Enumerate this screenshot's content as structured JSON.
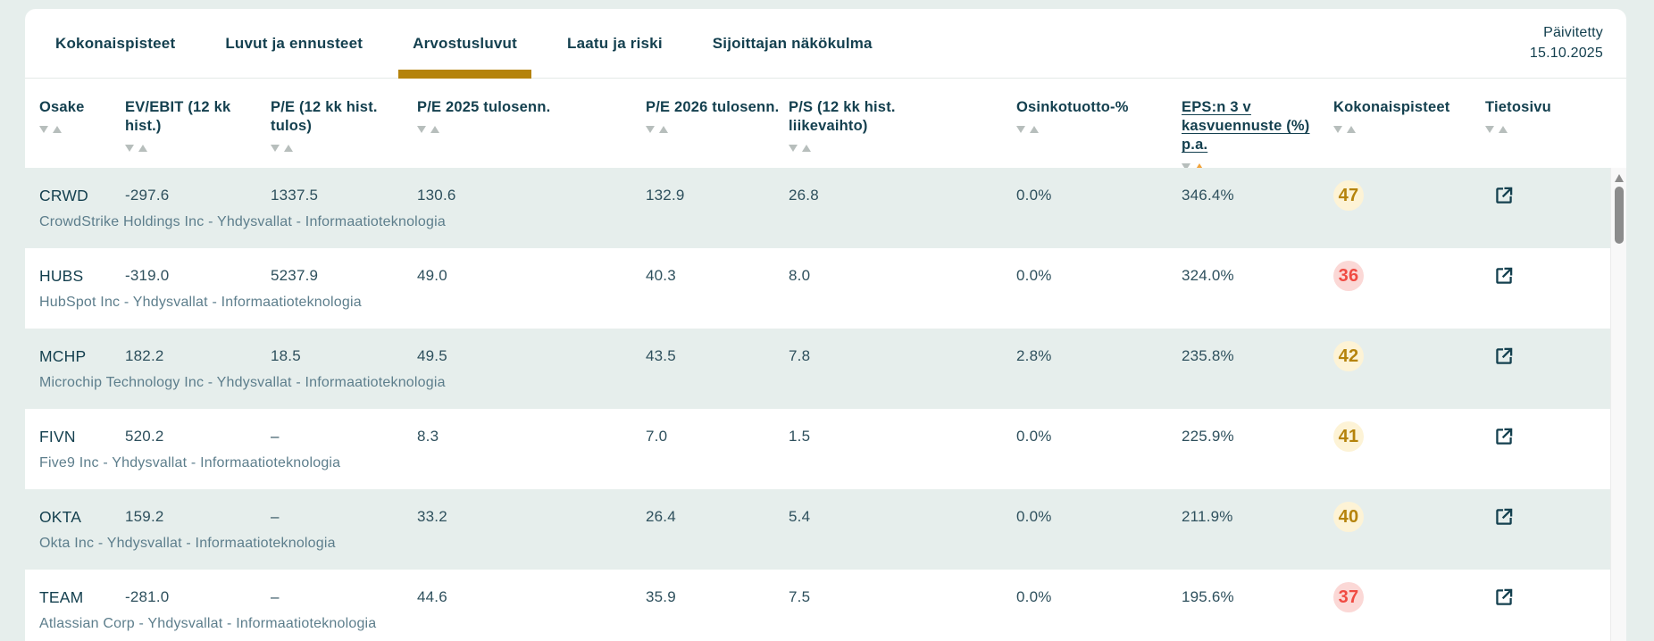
{
  "header": {
    "updated_label": "Päivitetty",
    "updated_date": "15.10.2025"
  },
  "tabs": [
    {
      "label": "Kokonaispisteet",
      "active": false
    },
    {
      "label": "Luvut ja ennusteet",
      "active": false
    },
    {
      "label": "Arvostusluvut",
      "active": true
    },
    {
      "label": "Laatu ja riski",
      "active": false
    },
    {
      "label": "Sijoittajan näkökulma",
      "active": false
    }
  ],
  "table": {
    "columns": [
      {
        "label": "Osake",
        "sorted": false,
        "underlined": false
      },
      {
        "label": "EV/EBIT (12 kk hist.)",
        "sorted": false,
        "underlined": false
      },
      {
        "label": "P/E (12 kk hist. tulos)",
        "sorted": false,
        "underlined": false
      },
      {
        "label": "P/E 2025 tulosenn.",
        "sorted": false,
        "underlined": false
      },
      {
        "label": "P/E 2026 tulosenn.",
        "sorted": false,
        "underlined": false
      },
      {
        "label": "P/S (12 kk hist. liikevaihto)",
        "sorted": false,
        "underlined": false
      },
      {
        "label": "Osinkotuotto-%",
        "sorted": false,
        "underlined": false
      },
      {
        "label": "EPS:n 3 v kasvuennuste (%) p.a.",
        "sorted": true,
        "underlined": true,
        "sort_direction": "up"
      },
      {
        "label": "Kokonaispisteet",
        "sorted": false,
        "underlined": false
      },
      {
        "label": "Tietosivu",
        "sorted": false,
        "underlined": false
      }
    ],
    "rows": [
      {
        "ticker": "CRWD",
        "company": "CrowdStrike Holdings Inc - Yhdysvallat - Informaatioteknologia",
        "values": [
          "-297.6",
          "1337.5",
          "130.6",
          "132.9",
          "26.8",
          "0.0%",
          "346.4%"
        ],
        "score": "47",
        "score_level": "gold"
      },
      {
        "ticker": "HUBS",
        "company": "HubSpot Inc - Yhdysvallat - Informaatioteknologia",
        "values": [
          "-319.0",
          "5237.9",
          "49.0",
          "40.3",
          "8.0",
          "0.0%",
          "324.0%"
        ],
        "score": "36",
        "score_level": "red"
      },
      {
        "ticker": "MCHP",
        "company": "Microchip Technology Inc - Yhdysvallat - Informaatioteknologia",
        "values": [
          "182.2",
          "18.5",
          "49.5",
          "43.5",
          "7.8",
          "2.8%",
          "235.8%"
        ],
        "score": "42",
        "score_level": "gold"
      },
      {
        "ticker": "FIVN",
        "company": "Five9 Inc - Yhdysvallat - Informaatioteknologia",
        "values": [
          "520.2",
          "–",
          "8.3",
          "7.0",
          "1.5",
          "0.0%",
          "225.9%"
        ],
        "score": "41",
        "score_level": "gold"
      },
      {
        "ticker": "OKTA",
        "company": "Okta Inc - Yhdysvallat - Informaatioteknologia",
        "values": [
          "159.2",
          "–",
          "33.2",
          "26.4",
          "5.4",
          "0.0%",
          "211.9%"
        ],
        "score": "40",
        "score_level": "gold"
      },
      {
        "ticker": "TEAM",
        "company": "Atlassian Corp - Yhdysvallat - Informaatioteknologia",
        "values": [
          "-281.0",
          "–",
          "44.6",
          "35.9",
          "7.5",
          "0.0%",
          "195.6%"
        ],
        "score": "37",
        "score_level": "red"
      }
    ]
  },
  "colors": {
    "accent_underline": "#b5830b",
    "sort_active": "#f2a43c",
    "gold": "#b5830b",
    "gold_bg": "#fdf3d6",
    "red": "#f04a42",
    "red_bg": "#fbd8d6"
  }
}
